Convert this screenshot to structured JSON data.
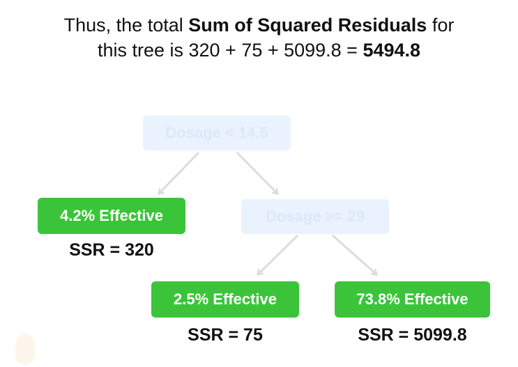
{
  "caption": {
    "line1_prefix": "Thus, the total ",
    "line1_bold": "Sum of Squared Residuals",
    "line1_suffix": " for",
    "line2_prefix": "this tree is 320 + 75 + 5099.8 = ",
    "line2_bold": "5494.8"
  },
  "tree": {
    "root": {
      "label": "Dosage < 14.5"
    },
    "internal": {
      "label": "Dosage >= 29"
    },
    "leaves": [
      {
        "label": "4.2% Effective",
        "ssr": "SSR = 320"
      },
      {
        "label": "2.5% Effective",
        "ssr": "SSR = 75"
      },
      {
        "label": "73.8% Effective",
        "ssr": "SSR = 5099.8"
      }
    ]
  },
  "colors": {
    "leaf_fill": "#3bc43a",
    "faded_node_fill": "#eaf2fd",
    "edge": "#dcdcdc"
  }
}
